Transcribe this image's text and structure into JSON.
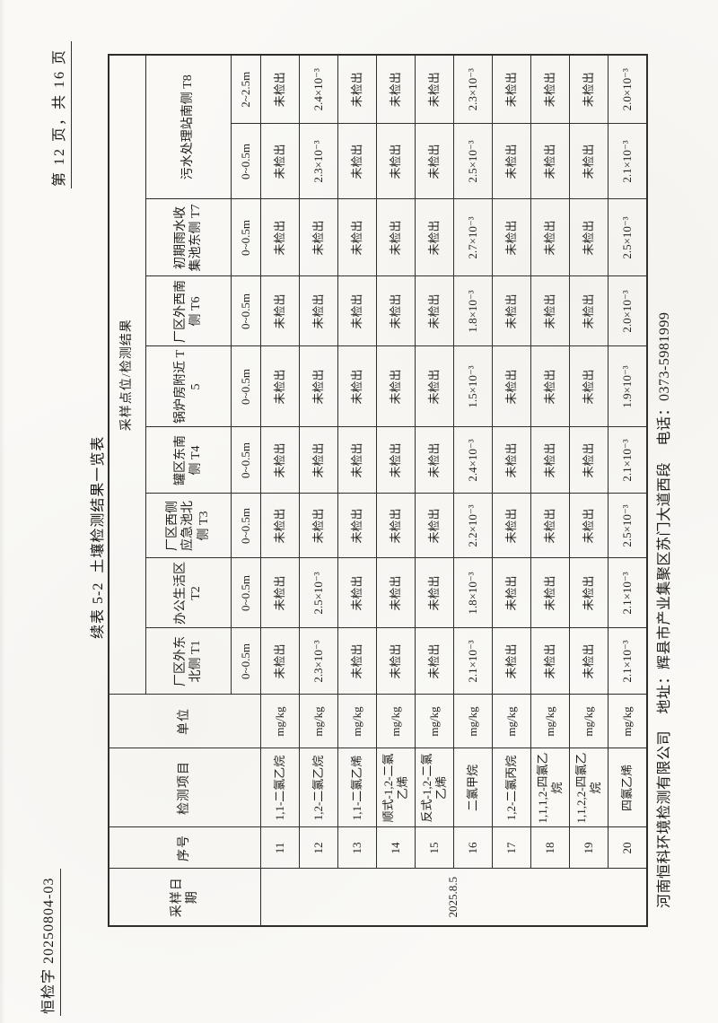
{
  "colors": {
    "paper": "#faf9f6",
    "ink": "#1c1a18",
    "border": "#2f2c28"
  },
  "page": {
    "doc_no": "恒检字 20250804-03",
    "page_no": "第 12 页，共 16 页",
    "title": "续表 5-2  土壤检测结果一览表",
    "footer": {
      "company": "河南恒科环境检测有限公司",
      "address": "地址：辉县市产业集聚区苏门大道西段",
      "phone": "电话：0373-5981999"
    }
  },
  "table": {
    "header": {
      "date_label": "采样日期",
      "no_label": "序号",
      "item_label": "检测项目",
      "unit_label": "单位",
      "result_label": "采样点位/检测结果",
      "points": [
        {
          "name": "厂区外东北侧 T1",
          "depths": [
            "0~0.5m"
          ]
        },
        {
          "name": "办公生活区 T2",
          "depths": [
            "0~0.5m"
          ]
        },
        {
          "name": "厂区西侧应急池北侧 T3",
          "depths": [
            "0~0.5m"
          ]
        },
        {
          "name": "罐区东南侧 T4",
          "depths": [
            "0~0.5m"
          ]
        },
        {
          "name": "锅炉房附近 T5",
          "depths": [
            "0~0.5m"
          ]
        },
        {
          "name": "厂区外西南侧 T6",
          "depths": [
            "0~0.5m"
          ]
        },
        {
          "name": "初期雨水收集池东侧 T7",
          "depths": [
            "0~0.5m"
          ]
        },
        {
          "name": "污水处理站南侧 T8",
          "depths": [
            "0~0.5m",
            "2~2.5m"
          ]
        }
      ]
    },
    "date_value": "2025.8.5",
    "not_detected_label": "未检出",
    "rows": [
      {
        "no": "11",
        "item": "1,1-二氯乙烷",
        "unit": "mg/kg",
        "values": [
          "未检出",
          "未检出",
          "未检出",
          "未检出",
          "未检出",
          "未检出",
          "未检出",
          "未检出",
          "未检出"
        ]
      },
      {
        "no": "12",
        "item": "1,2-二氯乙烷",
        "unit": "mg/kg",
        "values": [
          "2.3×10⁻³",
          "2.5×10⁻³",
          "未检出",
          "未检出",
          "未检出",
          "未检出",
          "未检出",
          "2.3×10⁻³",
          "2.4×10⁻³"
        ]
      },
      {
        "no": "13",
        "item": "1,1-二氯乙烯",
        "unit": "mg/kg",
        "values": [
          "未检出",
          "未检出",
          "未检出",
          "未检出",
          "未检出",
          "未检出",
          "未检出",
          "未检出",
          "未检出"
        ]
      },
      {
        "no": "14",
        "item": "顺式-1,2-二氯乙烯",
        "unit": "mg/kg",
        "values": [
          "未检出",
          "未检出",
          "未检出",
          "未检出",
          "未检出",
          "未检出",
          "未检出",
          "未检出",
          "未检出"
        ]
      },
      {
        "no": "15",
        "item": "反式-1,2-二氯乙烯",
        "unit": "mg/kg",
        "values": [
          "未检出",
          "未检出",
          "未检出",
          "未检出",
          "未检出",
          "未检出",
          "未检出",
          "未检出",
          "未检出"
        ]
      },
      {
        "no": "16",
        "item": "二氯甲烷",
        "unit": "mg/kg",
        "values": [
          "2.1×10⁻³",
          "1.8×10⁻³",
          "2.2×10⁻³",
          "2.4×10⁻³",
          "1.5×10⁻³",
          "1.8×10⁻³",
          "2.7×10⁻³",
          "2.5×10⁻³",
          "2.3×10⁻³"
        ]
      },
      {
        "no": "17",
        "item": "1,2-二氯丙烷",
        "unit": "mg/kg",
        "values": [
          "未检出",
          "未检出",
          "未检出",
          "未检出",
          "未检出",
          "未检出",
          "未检出",
          "未检出",
          "未检出"
        ]
      },
      {
        "no": "18",
        "item": "1,1,1,2-四氯乙烷",
        "unit": "mg/kg",
        "values": [
          "未检出",
          "未检出",
          "未检出",
          "未检出",
          "未检出",
          "未检出",
          "未检出",
          "未检出",
          "未检出"
        ]
      },
      {
        "no": "19",
        "item": "1,1,2,2-四氯乙烷",
        "unit": "mg/kg",
        "values": [
          "未检出",
          "未检出",
          "未检出",
          "未检出",
          "未检出",
          "未检出",
          "未检出",
          "未检出",
          "未检出"
        ]
      },
      {
        "no": "20",
        "item": "四氯乙烯",
        "unit": "mg/kg",
        "values": [
          "2.1×10⁻³",
          "2.1×10⁻³",
          "2.5×10⁻³",
          "2.1×10⁻³",
          "1.9×10⁻³",
          "2.0×10⁻³",
          "2.5×10⁻³",
          "2.1×10⁻³",
          "2.0×10⁻³"
        ]
      }
    ]
  }
}
